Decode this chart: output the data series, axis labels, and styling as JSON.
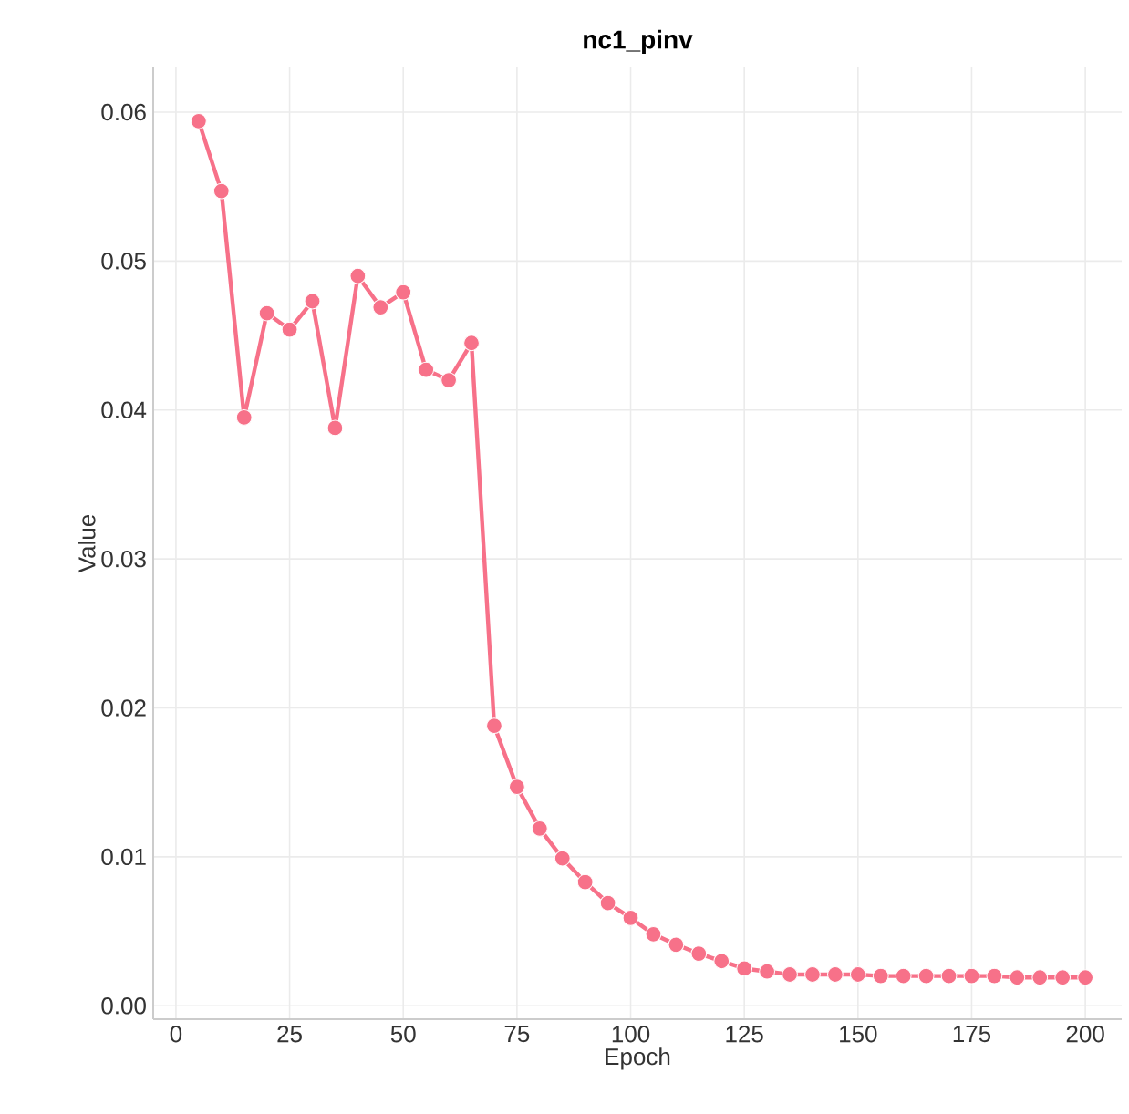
{
  "chart_data": {
    "type": "line",
    "title": "**nc1_pinv**",
    "xlabel": "Epoch",
    "ylabel": "Value",
    "x": [
      5,
      10,
      15,
      20,
      25,
      30,
      35,
      40,
      45,
      50,
      55,
      60,
      65,
      70,
      75,
      80,
      85,
      90,
      95,
      100,
      105,
      110,
      115,
      120,
      125,
      130,
      135,
      140,
      145,
      150,
      155,
      160,
      165,
      170,
      175,
      180,
      185,
      190,
      195,
      200
    ],
    "series": [
      {
        "color": "#f77189",
        "values": [
          0.0594,
          0.0547,
          0.0395,
          0.0465,
          0.0454,
          0.0473,
          0.0388,
          0.049,
          0.0469,
          0.0479,
          0.0427,
          0.042,
          0.0445,
          0.0188,
          0.0147,
          0.0119,
          0.0099,
          0.0083,
          0.0069,
          0.0059,
          0.0048,
          0.0041,
          0.0035,
          0.003,
          0.0025,
          0.0023,
          0.0021,
          0.0021,
          0.0021,
          0.0021,
          0.002,
          0.002,
          0.002,
          0.002,
          0.002,
          0.002,
          0.0019,
          0.0019,
          0.0019,
          0.0019
        ]
      }
    ],
    "xlim": [
      -5,
      208
    ],
    "ylim": [
      -0.0009,
      0.063
    ],
    "xticks": [
      0,
      25,
      50,
      75,
      100,
      125,
      150,
      175,
      200
    ],
    "yticks": [
      {
        "value": 0,
        "label": "0.00"
      },
      {
        "value": 0.01,
        "label": "0.01"
      },
      {
        "value": 0.02,
        "label": "0.02"
      },
      {
        "value": 0.03,
        "label": "0.03"
      },
      {
        "value": 0.04,
        "label": "0.04"
      },
      {
        "value": 0.05,
        "label": "0.05"
      },
      {
        "value": 0.06,
        "label": "0.06"
      }
    ],
    "grid": true,
    "marker": "circle",
    "line_style": "solid"
  }
}
